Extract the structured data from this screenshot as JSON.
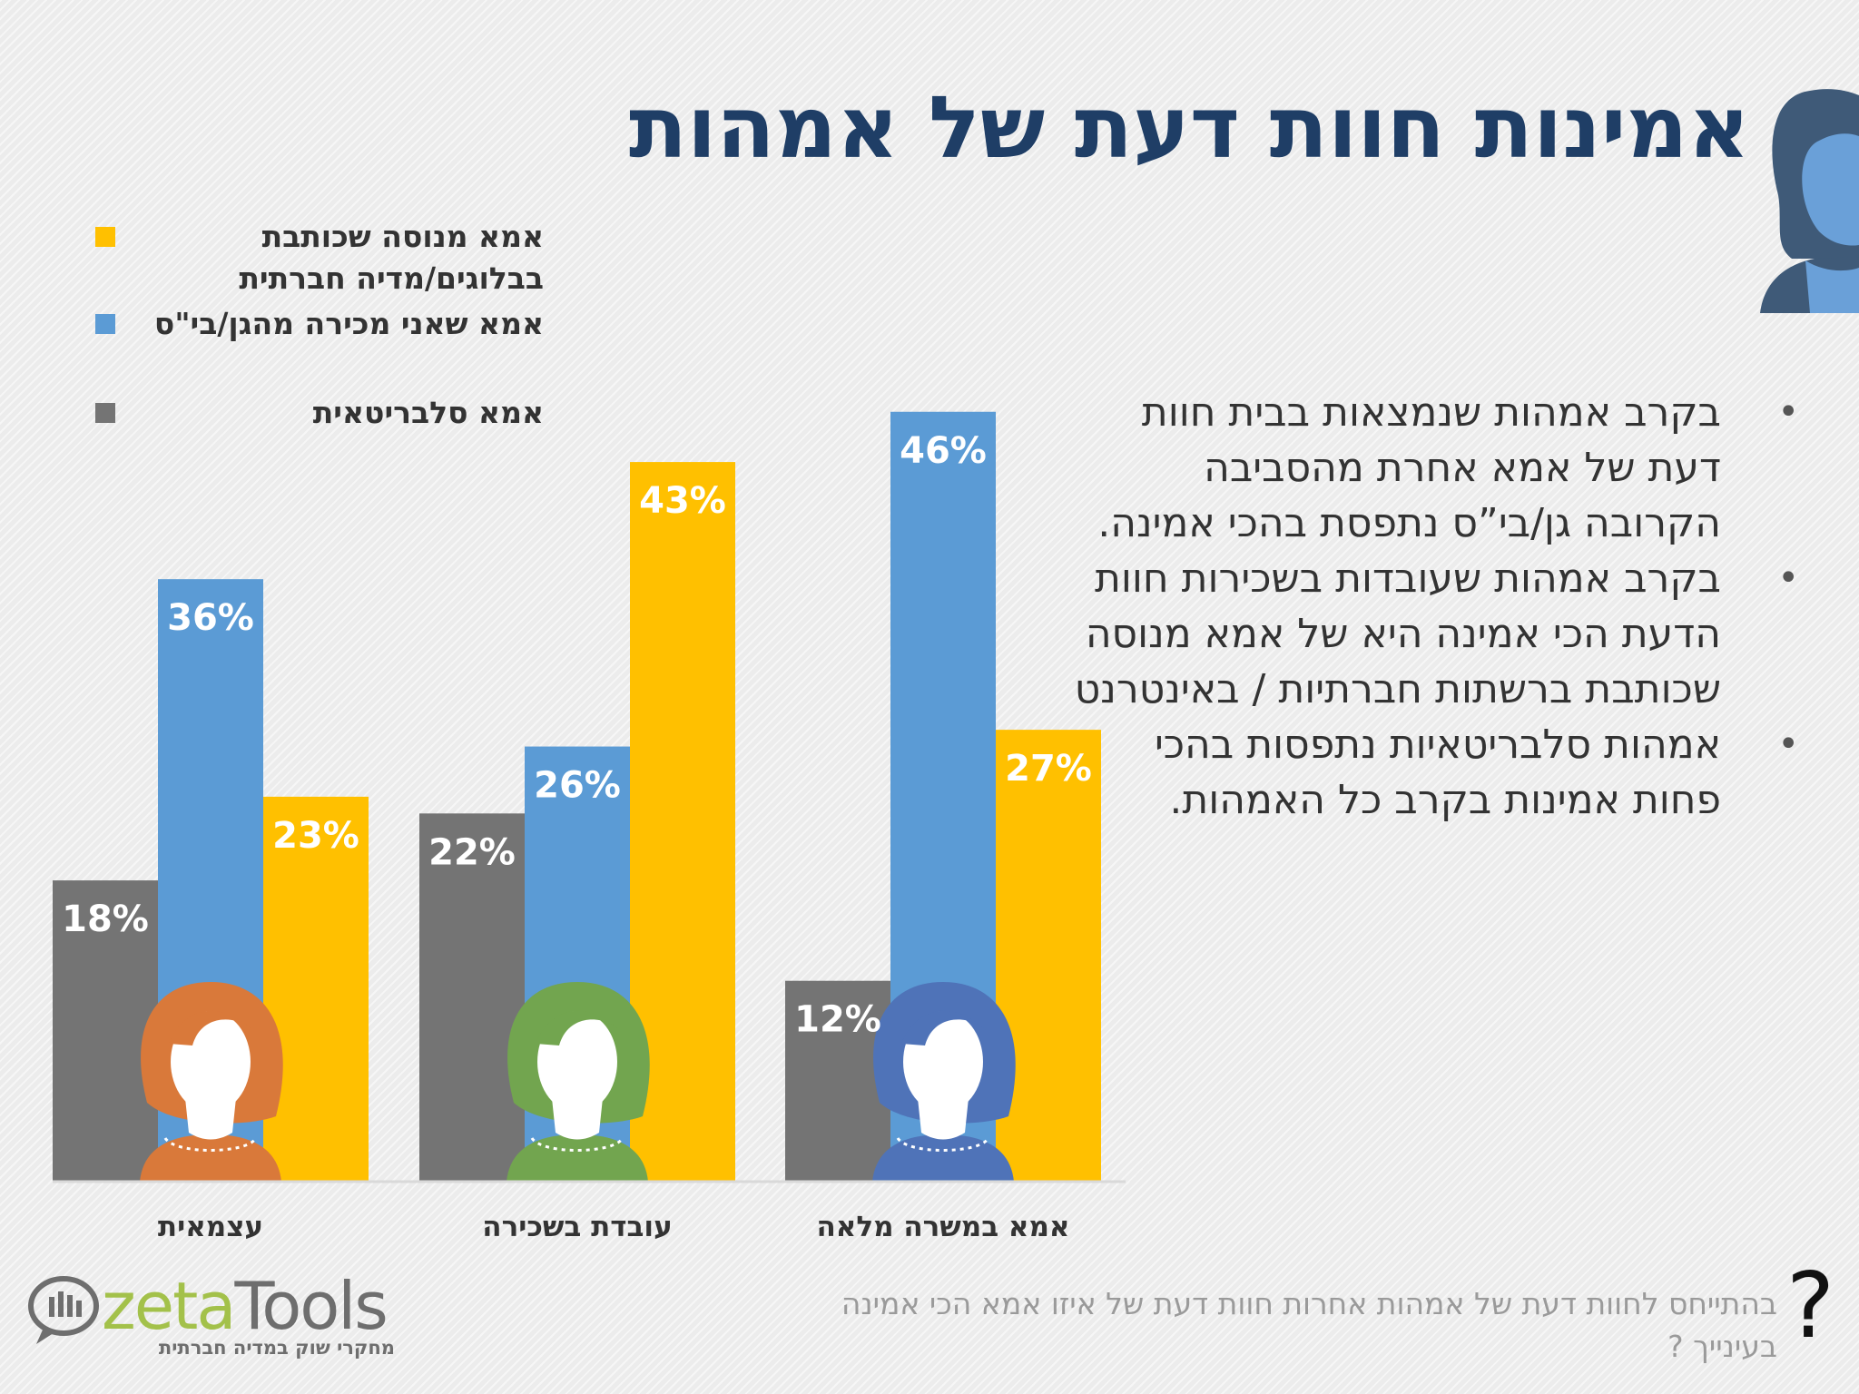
{
  "title": "אמינות חוות דעת של אמהות",
  "chart_data": {
    "type": "bar",
    "categories": [
      "עצמאית",
      "עובדת בשכירה",
      "אמא במשרה מלאה"
    ],
    "series": [
      {
        "name": "אמא סלבריטאית",
        "color": "#747474",
        "values": [
          18,
          22,
          12
        ],
        "labels": [
          "18%",
          "22%",
          "12%"
        ]
      },
      {
        "name": "אמא שאני מכירה מהגן/בי\"ס",
        "color": "#5b9bd5",
        "values": [
          36,
          26,
          46
        ],
        "labels": [
          "36%",
          "26%",
          "46%"
        ]
      },
      {
        "name": "אמא מנוסה שכותבת\nבבלוגים/מדיה חברתית",
        "color": "#ffc000",
        "values": [
          23,
          43,
          27
        ],
        "labels": [
          "23%",
          "43%",
          "27%"
        ]
      }
    ],
    "ylim": [
      0,
      50
    ],
    "category_avatar_colors": [
      "#d9793a",
      "#72a54f",
      "#4f73b8"
    ],
    "legend_position": "top-left",
    "grid": false
  },
  "bullets": [
    "בקרב אמהות שנמצאות בבית חוות דעת של אמא אחרת מהסביבה הקרובה גן/בי”ס נתפסת בהכי אמינה.",
    "בקרב אמהות שעובדות בשכירות חוות הדעת הכי אמינה היא של אמא מנוסה שכותבת ברשתות חברתיות / באינטרנט",
    "אמהות סלבריטאיות נתפסות בהכי פחות אמינות בקרב כל האמהות."
  ],
  "bullet_symbol": "•",
  "footer_question": "בהתייחס לחוות דעת של אמהות אחרות  חוות דעת של איזו אמא הכי אמינה בעינייך ?",
  "question_mark": "?",
  "logo": {
    "word_a": "zeta",
    "word_b": "Tools",
    "tagline": "מחקרי שוק במדיה חברתית"
  }
}
